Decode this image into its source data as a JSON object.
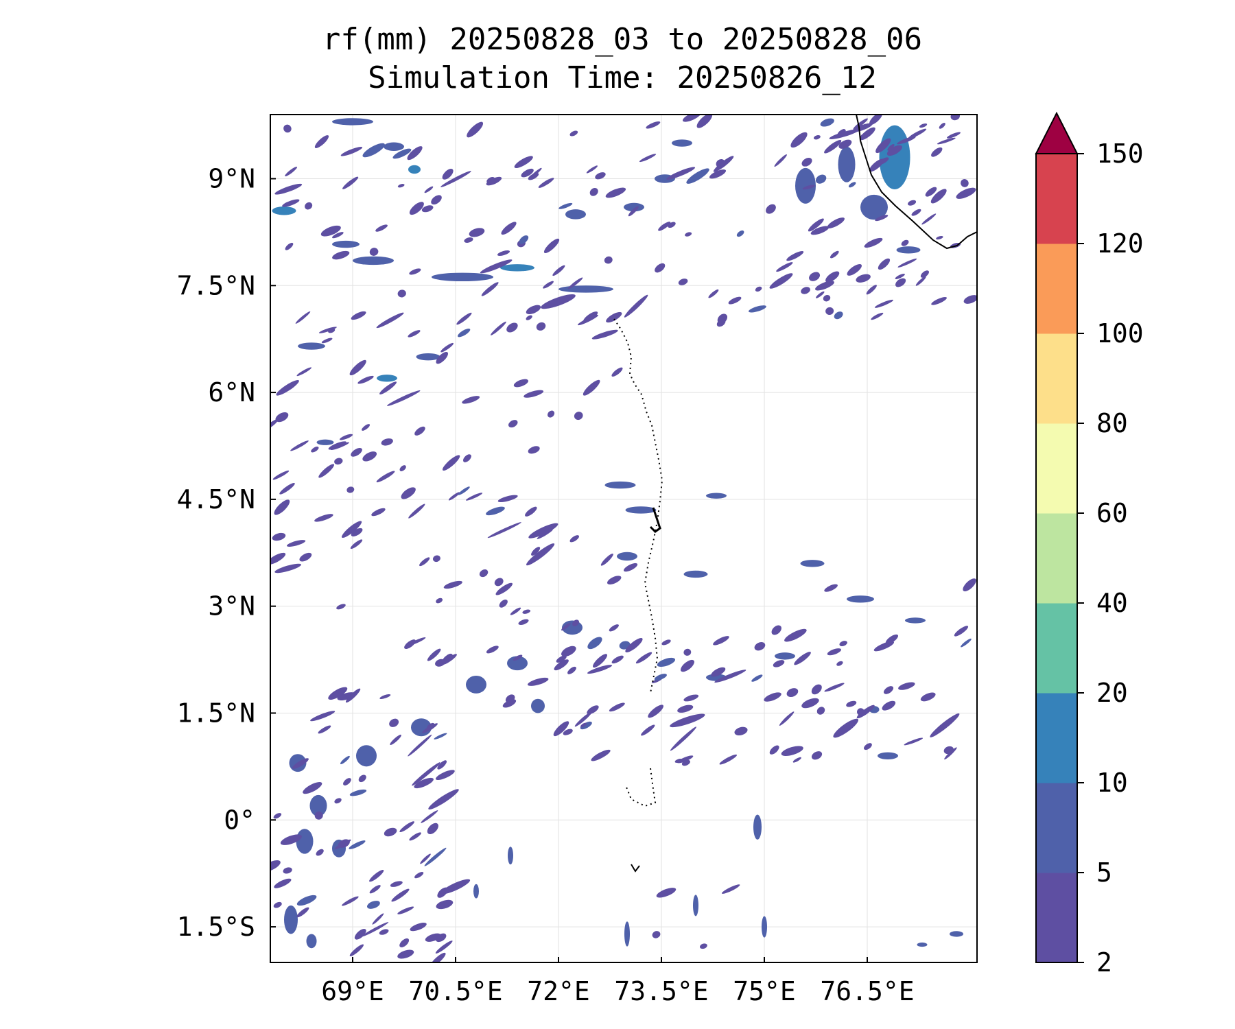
{
  "title": {
    "line1": "rf(mm) 20250828_03 to 20250828_06",
    "line2": "Simulation Time: 20250826_12"
  },
  "map": {
    "lon_range": [
      67.8,
      78.1
    ],
    "lat_range": [
      -2.0,
      9.9
    ],
    "x_ticks": [
      {
        "value": 69.0,
        "label": "69°E"
      },
      {
        "value": 70.5,
        "label": "70.5°E"
      },
      {
        "value": 72.0,
        "label": "72°E"
      },
      {
        "value": 73.5,
        "label": "73.5°E"
      },
      {
        "value": 75.0,
        "label": "75°E"
      },
      {
        "value": 76.5,
        "label": "76.5°E"
      }
    ],
    "y_ticks": [
      {
        "value": 9.0,
        "label": "9°N"
      },
      {
        "value": 7.5,
        "label": "7.5°N"
      },
      {
        "value": 6.0,
        "label": "6°N"
      },
      {
        "value": 4.5,
        "label": "4.5°N"
      },
      {
        "value": 3.0,
        "label": "3°N"
      },
      {
        "value": 1.5,
        "label": "1.5°N"
      },
      {
        "value": 0.0,
        "label": "0°"
      },
      {
        "value": -1.5,
        "label": "1.5°S"
      }
    ],
    "grid": true
  },
  "colorbar": {
    "levels": [
      {
        "value": 2,
        "label": "2"
      },
      {
        "value": 5,
        "label": "5"
      },
      {
        "value": 10,
        "label": "10"
      },
      {
        "value": 20,
        "label": "20"
      },
      {
        "value": 40,
        "label": "40"
      },
      {
        "value": 60,
        "label": "60"
      },
      {
        "value": 80,
        "label": "80"
      },
      {
        "value": 100,
        "label": "100"
      },
      {
        "value": 120,
        "label": "120"
      },
      {
        "value": 150,
        "label": "150"
      }
    ],
    "colors": [
      "#5e4fa2",
      "#4f61aa",
      "#3682ba",
      "#65c2a5",
      "#bde5a0",
      "#f4fbb0",
      "#fddf8a",
      "#fa9b58",
      "#d7434f"
    ],
    "extend_color": "#9e0142",
    "extend": "max"
  },
  "chart_data": {
    "type": "heatmap",
    "variable": "rf(mm)",
    "title": "rf(mm) 20250828_03 to 20250828_06",
    "subtitle": "Simulation Time: 20250826_12",
    "x_range": [
      67.8,
      78.1
    ],
    "y_range": [
      -2.0,
      9.9
    ],
    "rain_patches": [
      {
        "lon": 68.0,
        "lat": 8.55,
        "w": 0.35,
        "h": 0.12,
        "level": 10
      },
      {
        "lon": 68.9,
        "lat": 8.08,
        "w": 0.4,
        "h": 0.1,
        "level": 5
      },
      {
        "lon": 69.3,
        "lat": 7.85,
        "w": 0.6,
        "h": 0.12,
        "level": 5
      },
      {
        "lon": 70.6,
        "lat": 7.62,
        "w": 0.9,
        "h": 0.12,
        "level": 5
      },
      {
        "lon": 71.4,
        "lat": 7.75,
        "w": 0.5,
        "h": 0.1,
        "level": 10
      },
      {
        "lon": 72.4,
        "lat": 7.45,
        "w": 0.8,
        "h": 0.1,
        "level": 5
      },
      {
        "lon": 69.0,
        "lat": 9.8,
        "w": 0.6,
        "h": 0.1,
        "level": 5
      },
      {
        "lon": 69.6,
        "lat": 9.45,
        "w": 0.3,
        "h": 0.12,
        "level": 5
      },
      {
        "lon": 69.9,
        "lat": 9.13,
        "w": 0.18,
        "h": 0.12,
        "level": 10
      },
      {
        "lon": 72.25,
        "lat": 8.5,
        "w": 0.3,
        "h": 0.14,
        "level": 5
      },
      {
        "lon": 73.1,
        "lat": 8.6,
        "w": 0.3,
        "h": 0.12,
        "level": 5
      },
      {
        "lon": 73.8,
        "lat": 9.5,
        "w": 0.3,
        "h": 0.1,
        "level": 5
      },
      {
        "lon": 73.55,
        "lat": 9.0,
        "w": 0.3,
        "h": 0.12,
        "level": 5
      },
      {
        "lon": 68.4,
        "lat": 6.65,
        "w": 0.4,
        "h": 0.1,
        "level": 5
      },
      {
        "lon": 69.5,
        "lat": 6.2,
        "w": 0.3,
        "h": 0.1,
        "level": 10
      },
      {
        "lon": 70.1,
        "lat": 6.5,
        "w": 0.35,
        "h": 0.1,
        "level": 5
      },
      {
        "lon": 68.6,
        "lat": 5.3,
        "w": 0.25,
        "h": 0.08,
        "level": 5
      },
      {
        "lon": 76.9,
        "lat": 9.3,
        "w": 0.45,
        "h": 0.9,
        "level": 10
      },
      {
        "lon": 76.6,
        "lat": 8.6,
        "w": 0.4,
        "h": 0.35,
        "level": 5
      },
      {
        "lon": 75.6,
        "lat": 8.9,
        "w": 0.3,
        "h": 0.5,
        "level": 5
      },
      {
        "lon": 76.2,
        "lat": 9.2,
        "w": 0.25,
        "h": 0.5,
        "level": 5
      },
      {
        "lon": 77.1,
        "lat": 8.0,
        "w": 0.35,
        "h": 0.1,
        "level": 5
      },
      {
        "lon": 73.2,
        "lat": 4.35,
        "w": 0.45,
        "h": 0.1,
        "level": 5
      },
      {
        "lon": 72.9,
        "lat": 4.7,
        "w": 0.45,
        "h": 0.1,
        "level": 5
      },
      {
        "lon": 74.3,
        "lat": 4.55,
        "w": 0.3,
        "h": 0.08,
        "level": 5
      },
      {
        "lon": 73.0,
        "lat": 3.7,
        "w": 0.3,
        "h": 0.12,
        "level": 5
      },
      {
        "lon": 74.0,
        "lat": 3.45,
        "w": 0.35,
        "h": 0.1,
        "level": 5
      },
      {
        "lon": 75.7,
        "lat": 3.6,
        "w": 0.35,
        "h": 0.1,
        "level": 5
      },
      {
        "lon": 76.4,
        "lat": 3.1,
        "w": 0.4,
        "h": 0.1,
        "level": 5
      },
      {
        "lon": 77.2,
        "lat": 2.8,
        "w": 0.3,
        "h": 0.08,
        "level": 5
      },
      {
        "lon": 72.2,
        "lat": 2.7,
        "w": 0.3,
        "h": 0.2,
        "level": 5
      },
      {
        "lon": 71.4,
        "lat": 2.2,
        "w": 0.3,
        "h": 0.2,
        "level": 5
      },
      {
        "lon": 70.8,
        "lat": 1.9,
        "w": 0.3,
        "h": 0.25,
        "level": 5
      },
      {
        "lon": 71.7,
        "lat": 1.6,
        "w": 0.2,
        "h": 0.2,
        "level": 5
      },
      {
        "lon": 70.0,
        "lat": 1.3,
        "w": 0.3,
        "h": 0.25,
        "level": 5
      },
      {
        "lon": 69.2,
        "lat": 0.9,
        "w": 0.3,
        "h": 0.3,
        "level": 5
      },
      {
        "lon": 68.2,
        "lat": 0.8,
        "w": 0.25,
        "h": 0.25,
        "level": 5
      },
      {
        "lon": 68.5,
        "lat": 0.2,
        "w": 0.25,
        "h": 0.3,
        "level": 5
      },
      {
        "lon": 68.3,
        "lat": -0.3,
        "w": 0.25,
        "h": 0.35,
        "level": 5
      },
      {
        "lon": 68.8,
        "lat": -0.4,
        "w": 0.2,
        "h": 0.25,
        "level": 5
      },
      {
        "lon": 68.1,
        "lat": -1.4,
        "w": 0.2,
        "h": 0.4,
        "level": 5
      },
      {
        "lon": 68.4,
        "lat": -1.7,
        "w": 0.15,
        "h": 0.2,
        "level": 5
      },
      {
        "lon": 74.3,
        "lat": 2.0,
        "w": 0.3,
        "h": 0.1,
        "level": 5
      },
      {
        "lon": 75.3,
        "lat": 2.3,
        "w": 0.3,
        "h": 0.1,
        "level": 5
      },
      {
        "lon": 76.6,
        "lat": 1.55,
        "w": 0.15,
        "h": 0.1,
        "level": 5
      },
      {
        "lon": 76.8,
        "lat": 0.9,
        "w": 0.3,
        "h": 0.1,
        "level": 5
      },
      {
        "lon": 77.8,
        "lat": -1.6,
        "w": 0.2,
        "h": 0.08,
        "level": 5
      },
      {
        "lon": 77.3,
        "lat": -1.75,
        "w": 0.15,
        "h": 0.06,
        "level": 5
      },
      {
        "lon": 74.9,
        "lat": -0.1,
        "w": 0.12,
        "h": 0.35,
        "level": 5
      },
      {
        "lon": 74.0,
        "lat": -1.2,
        "w": 0.08,
        "h": 0.3,
        "level": 5
      },
      {
        "lon": 73.0,
        "lat": -1.6,
        "w": 0.08,
        "h": 0.35,
        "level": 5
      },
      {
        "lon": 75.0,
        "lat": -1.5,
        "w": 0.08,
        "h": 0.3,
        "level": 5
      },
      {
        "lon": 71.3,
        "lat": -0.5,
        "w": 0.08,
        "h": 0.25,
        "level": 5
      },
      {
        "lon": 70.8,
        "lat": -1.0,
        "w": 0.08,
        "h": 0.2,
        "level": 5
      }
    ]
  }
}
